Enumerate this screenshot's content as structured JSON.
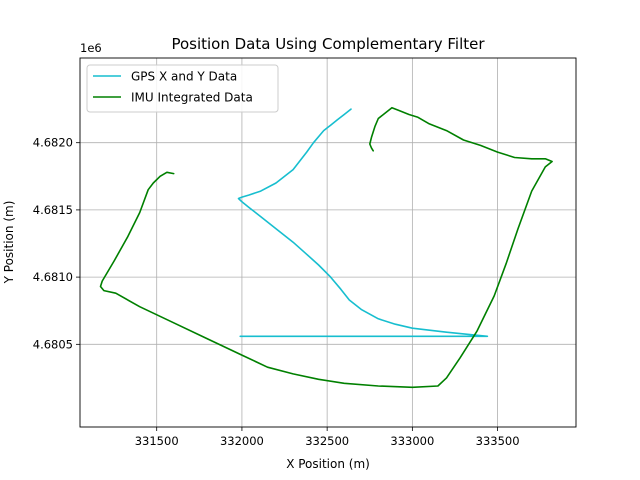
{
  "chart_data": {
    "type": "line",
    "title": "Position Data Using Complementary Filter",
    "xlabel": "X Position (m)",
    "ylabel": "Y Position (m)",
    "y_offset_label": "1e6",
    "xlim": [
      331050,
      333960
    ],
    "ylim": [
      4679885,
      4682630
    ],
    "xticks": [
      331500,
      332000,
      332500,
      333000,
      333500
    ],
    "xtick_labels": [
      "331500",
      "332000",
      "332500",
      "333000",
      "333500"
    ],
    "yticks": [
      4680500,
      4681000,
      4681500,
      4682000
    ],
    "ytick_labels": [
      "4.6805",
      "4.6810",
      "4.6815",
      "4.6820"
    ],
    "grid": true,
    "legend_position": "top-left",
    "series": [
      {
        "name": "GPS X and Y Data",
        "color": "#17becf",
        "x": [
          332640,
          332600,
          332560,
          332520,
          332480,
          332460,
          332420,
          332380,
          332300,
          332200,
          332110,
          332040,
          332000,
          331980,
          332000,
          332040,
          332110,
          332200,
          332300,
          332380,
          332450,
          332520,
          332580,
          332630,
          332700,
          332800,
          332900,
          333000,
          333100,
          333200,
          333280,
          333360,
          333440,
          333420,
          333300,
          333180,
          333000,
          332900,
          332800,
          332700,
          332630,
          332560,
          332480,
          332410,
          332340,
          332280,
          332200,
          332120,
          332050,
          331990,
          331990,
          332040,
          332100,
          332180,
          332260,
          332320,
          332360,
          332400,
          332430,
          332470,
          332480,
          332510,
          332550,
          332600,
          332640
        ],
        "y": [
          4682250,
          4682210,
          4682170,
          4682130,
          4682090,
          4682060,
          4682000,
          4681930,
          4681800,
          4681700,
          4681640,
          4681610,
          4681595,
          4681585,
          4681560,
          4681520,
          4681450,
          4681360,
          4681260,
          4681170,
          4681090,
          4681000,
          4680910,
          4680830,
          4680760,
          4680690,
          4680650,
          4680620,
          4680605,
          4680590,
          4680580,
          4680570,
          4680560,
          4680560,
          4680560,
          4680560,
          4680560,
          4680560,
          4680560,
          4680560,
          4680560,
          4680560,
          4680560,
          4680560,
          4680560,
          4680560,
          4680560,
          4680560,
          4680560,
          4680560,
          4680560,
          4680560,
          4680560,
          4680560,
          4680560,
          4680560,
          4680560,
          4680560,
          4680560,
          4680560,
          4680560,
          4680560,
          4680560,
          4680560,
          4680560
        ]
      },
      {
        "name": "IMU Integrated Data",
        "color": "#008000",
        "x": [
          331600,
          331560,
          331520,
          331480,
          331450,
          331400,
          331330,
          331250,
          331180,
          331170,
          331190,
          331260,
          331400,
          331600,
          331800,
          332000,
          332150,
          332300,
          332450,
          332600,
          332800,
          333000,
          333150,
          333200,
          333280,
          333380,
          333480,
          333550,
          333620,
          333700,
          333780,
          333820,
          333780,
          333700,
          333600,
          333500,
          333400,
          333300,
          333200,
          333100,
          333030,
          332980,
          332920,
          332880,
          332840,
          332800,
          332780,
          332760,
          332750,
          332760,
          332770
        ],
        "y": [
          4681770,
          4681780,
          4681750,
          4681700,
          4681650,
          4681480,
          4681300,
          4681120,
          4680970,
          4680930,
          4680900,
          4680880,
          4680780,
          4680660,
          4680540,
          4680420,
          4680330,
          4680280,
          4680240,
          4680210,
          4680190,
          4680180,
          4680190,
          4680250,
          4680400,
          4680600,
          4680860,
          4681100,
          4681360,
          4681640,
          4681820,
          4681860,
          4681880,
          4681880,
          4681890,
          4681930,
          4681980,
          4682020,
          4682090,
          4682140,
          4682190,
          4682210,
          4682240,
          4682260,
          4682220,
          4682180,
          4682120,
          4682040,
          4681990,
          4681960,
          4681940
        ]
      }
    ]
  }
}
